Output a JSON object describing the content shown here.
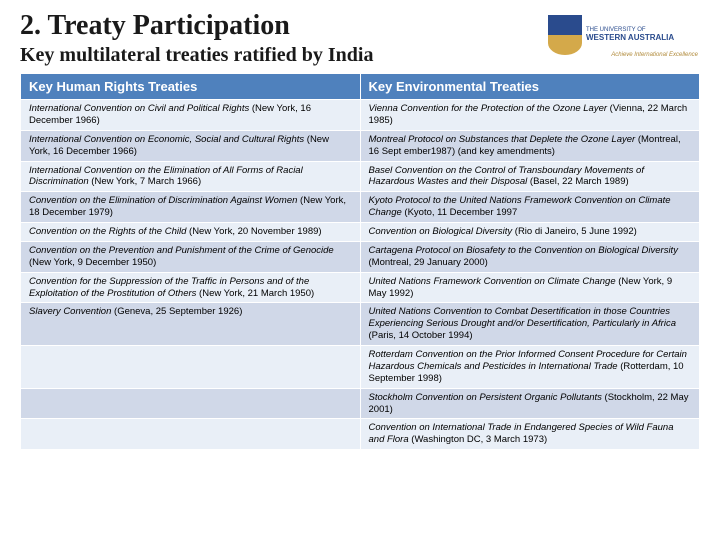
{
  "title": "2. Treaty Participation",
  "subtitle": "Key multilateral treaties ratified by India",
  "logo": {
    "line1": "THE UNIVERSITY OF",
    "line2": "WESTERN AUSTRALIA",
    "sub": "Achieve International Excellence"
  },
  "table": {
    "headers": [
      "Key Human Rights Treaties",
      "Key Environmental Treaties"
    ],
    "rows": [
      {
        "left_ital": "International Convention on Civil and Political Rights",
        "left_rest": " (New York, 16 December 1966)",
        "right_ital": "Vienna Convention for the Protection of the Ozone Layer",
        "right_rest": " (Vienna, 22 March 1985)"
      },
      {
        "left_ital": "International Convention on Economic, Social and Cultural Rights",
        "left_rest": " (New York, 16 December 1966)",
        "right_ital": "Montreal Protocol on Substances that Deplete the Ozone Layer",
        "right_rest": " (Montreal, 16 Sept ember1987) (and key amendments)"
      },
      {
        "left_ital": "International Convention on the Elimination of All Forms of Racial Discrimination",
        "left_rest": " (New York, 7 March 1966)",
        "right_ital": "Basel Convention on the Control of Transboundary Movements of Hazardous Wastes and their Disposal",
        "right_rest": " (Basel, 22 March 1989)"
      },
      {
        "left_ital": "Convention on the Elimination of Discrimination Against Women",
        "left_rest": " (New York, 18 December 1979)",
        "right_ital": "Kyoto Protocol to the United Nations Framework Convention on Climate Change",
        "right_rest": " (Kyoto, 11 December 1997"
      },
      {
        "left_ital": "Convention on the Rights of the Child",
        "left_rest": " (New York, 20 November 1989)",
        "right_ital": "Convention on Biological Diversity",
        "right_rest": " (Rio di Janeiro, 5 June 1992)"
      },
      {
        "left_ital": "Convention on the Prevention and Punishment of the Crime of Genocide",
        "left_rest": " (New York, 9 December 1950)",
        "right_ital": "Cartagena Protocol on Biosafety to the Convention on Biological Diversity",
        "right_rest": " (Montreal, 29 January 2000)"
      },
      {
        "left_ital": "Convention for the Suppression of the Traffic in Persons and of the Exploitation of the Prostitution of Others",
        "left_rest": " (New York, 21 March 1950)",
        "right_ital": "United Nations Framework Convention on Climate Change",
        "right_rest": " (New York, 9 May 1992)"
      },
      {
        "left_ital": "Slavery Convention",
        "left_rest": " (Geneva, 25 September 1926)",
        "right_ital": "United Nations Convention to Combat Desertification in those Countries Experiencing Serious Drought and/or Desertification, Particularly in Africa",
        "right_rest": " (Paris, 14 October 1994)"
      },
      {
        "left_ital": "",
        "left_rest": "",
        "right_ital": "Rotterdam Convention on the Prior Informed Consent Procedure for Certain Hazardous Chemicals and Pesticides in International Trade",
        "right_rest": " (Rotterdam, 10 September 1998)"
      },
      {
        "left_ital": "",
        "left_rest": "",
        "right_ital": "Stockholm Convention on Persistent Organic Pollutants",
        "right_rest": " (Stockholm, 22 May 2001)"
      },
      {
        "left_ital": "",
        "left_rest": "",
        "right_ital": "Convention on International Trade in Endangered Species of Wild Fauna and Flora",
        "right_rest": " (Washington DC, 3 March 1973)"
      }
    ]
  }
}
